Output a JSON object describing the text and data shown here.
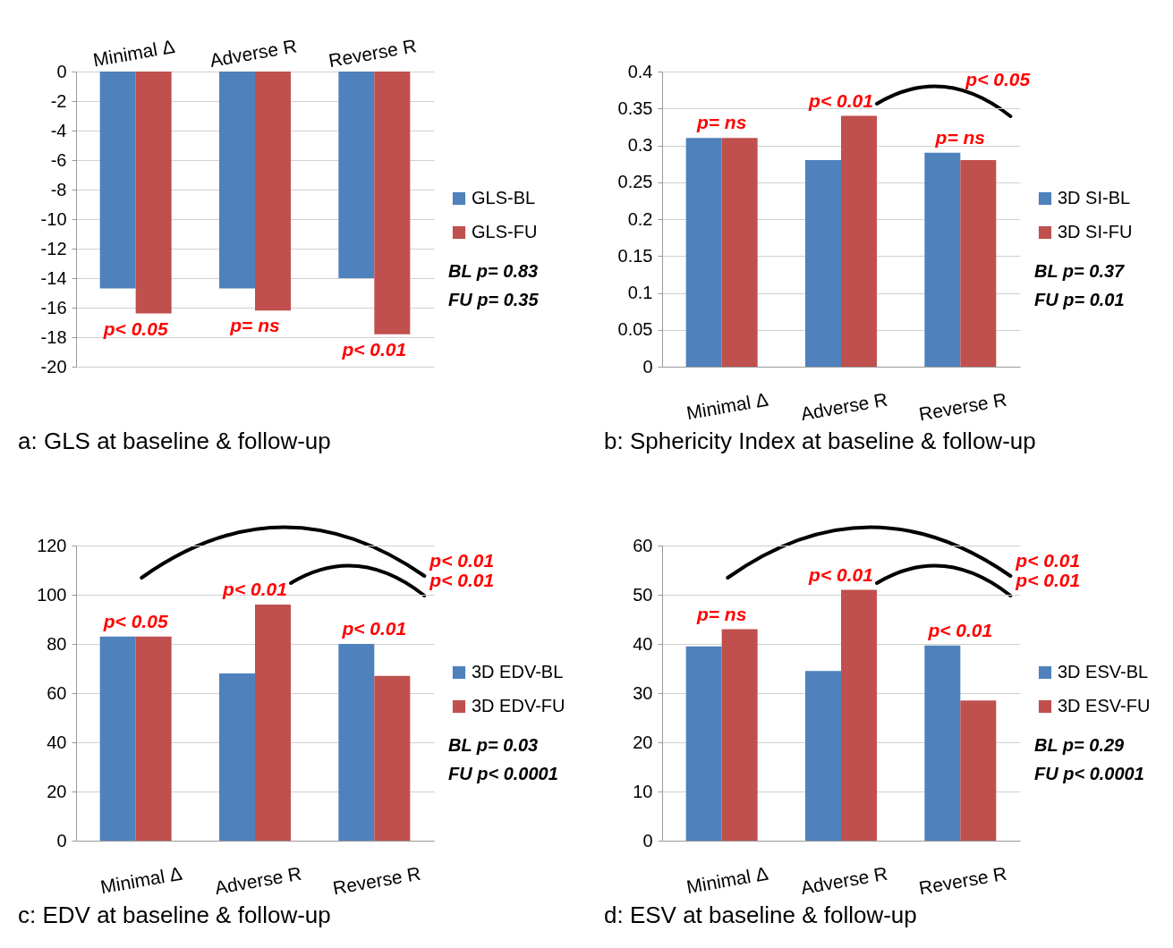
{
  "chart_data": [
    {
      "type": "bar",
      "title": "a: GLS at baseline & follow-up",
      "categories": [
        "Minimal Δ",
        "Adverse R",
        "Reverse R"
      ],
      "series": [
        {
          "name": "GLS-BL",
          "color": "#4f81bd",
          "values": [
            -14.7,
            -14.7,
            -14.0
          ]
        },
        {
          "name": "GLS-FU",
          "color": "#c0504d",
          "values": [
            -16.4,
            -16.2,
            -17.8
          ]
        }
      ],
      "ylim": [
        -20,
        0
      ],
      "yticks": [
        -20,
        -18,
        -16,
        -14,
        -12,
        -10,
        -8,
        -6,
        -4,
        -2,
        0
      ],
      "grid": "y",
      "legend": "right",
      "annotations": [
        "p< 0.05",
        "p= ns",
        "p< 0.01",
        "BL p= 0.83",
        "FU p= 0.35"
      ]
    },
    {
      "type": "bar",
      "title": "b: Sphericity Index at baseline & follow-up",
      "categories": [
        "Minimal Δ",
        "Adverse R",
        "Reverse R"
      ],
      "series": [
        {
          "name": "3D SI-BL",
          "color": "#4f81bd",
          "values": [
            0.31,
            0.28,
            0.29
          ]
        },
        {
          "name": "3D SI-FU",
          "color": "#c0504d",
          "values": [
            0.31,
            0.34,
            0.28
          ]
        }
      ],
      "ylim": [
        0,
        0.4
      ],
      "yticks": [
        0,
        0.05,
        0.1,
        0.15,
        0.2,
        0.25,
        0.3,
        0.35,
        0.4
      ],
      "grid": "y",
      "legend": "right",
      "annotations": [
        "p= ns",
        "p< 0.01",
        "p= ns",
        "p< 0.05",
        "BL p= 0.37",
        "FU p= 0.01"
      ]
    },
    {
      "type": "bar",
      "title": "c: EDV at baseline & follow-up",
      "categories": [
        "Minimal Δ",
        "Adverse R",
        "Reverse R"
      ],
      "series": [
        {
          "name": "3D EDV-BL",
          "color": "#4f81bd",
          "values": [
            83,
            68,
            80
          ]
        },
        {
          "name": "3D EDV-FU",
          "color": "#c0504d",
          "values": [
            83,
            96,
            67
          ]
        }
      ],
      "ylim": [
        0,
        120
      ],
      "yticks": [
        0,
        20,
        40,
        60,
        80,
        100,
        120
      ],
      "grid": "y",
      "legend": "right",
      "annotations": [
        "p< 0.05",
        "p< 0.01",
        "p< 0.01",
        "p< 0.01",
        "p< 0.01",
        "BL p= 0.03",
        "FU p< 0.0001"
      ]
    },
    {
      "type": "bar",
      "title": "d: ESV at baseline & follow-up",
      "categories": [
        "Minimal Δ",
        "Adverse R",
        "Reverse R"
      ],
      "series": [
        {
          "name": "3D ESV-BL",
          "color": "#4f81bd",
          "values": [
            39.5,
            34.5,
            39.7
          ]
        },
        {
          "name": "3D ESV-FU",
          "color": "#c0504d",
          "values": [
            43,
            51,
            28.5
          ]
        }
      ],
      "ylim": [
        0,
        60
      ],
      "yticks": [
        0,
        10,
        20,
        30,
        40,
        50,
        60
      ],
      "grid": "y",
      "legend": "right",
      "annotations": [
        "p= ns",
        "p< 0.01",
        "p< 0.01",
        "p< 0.01",
        "p< 0.01",
        "BL p= 0.29",
        "FU p< 0.0001"
      ]
    }
  ]
}
